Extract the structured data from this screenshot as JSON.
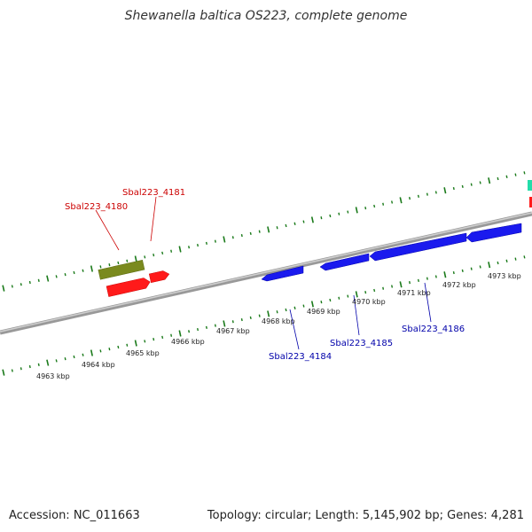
{
  "title": "Shewanella baltica OS223, complete genome",
  "footer": {
    "accession": "Accession: NC_011663",
    "summary": "Topology: circular; Length: 5,145,902 bp; Genes: 4,281"
  },
  "colors": {
    "forward_gene": "#7a8a1e",
    "forward_rna": "#ff1a1a",
    "reverse_gene": "#1a1aee",
    "tick": "#1a7a1a",
    "backbone": "#888888",
    "forward_label": "#cc0000",
    "reverse_label": "#0000aa",
    "edge_feature": "#22ddaa"
  },
  "scale_labels": [
    "4963 kbp",
    "4964 kbp",
    "4965 kbp",
    "4966 kbp",
    "4967 kbp",
    "4968 kbp",
    "4969 kbp",
    "4970 kbp",
    "4971 kbp",
    "4972 kbp",
    "4973 kbp"
  ],
  "gene_labels": {
    "forward": [
      "Sbal223_4180",
      "Sbal223_4181"
    ],
    "reverse": [
      "Sbal223_4184",
      "Sbal223_4185",
      "Sbal223_4186"
    ]
  }
}
